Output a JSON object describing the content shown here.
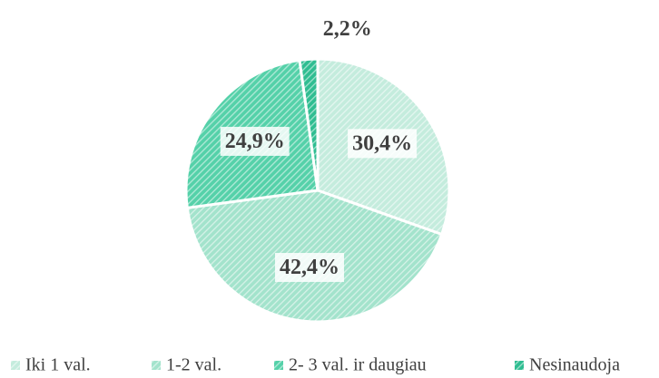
{
  "chart_data": {
    "type": "pie",
    "categories": [
      "Iki 1 val.",
      "1-2 val.",
      "2- 3 val. ir daugiau",
      "Nesinaudoja"
    ],
    "values": [
      30.4,
      42.4,
      24.9,
      2.2
    ],
    "value_labels": [
      "30,4%",
      "42,4%",
      "24,9%",
      "2,2%"
    ],
    "colors": [
      "#c4ecdd",
      "#a3e3cc",
      "#55d1a9",
      "#2fbd91"
    ],
    "legend": "bottom"
  }
}
